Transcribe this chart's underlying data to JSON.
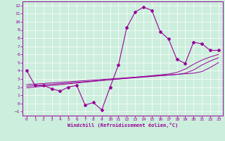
{
  "xlabel": "Windchill (Refroidissement éolien,°C)",
  "x": [
    0,
    1,
    2,
    3,
    4,
    5,
    6,
    7,
    8,
    9,
    10,
    11,
    12,
    13,
    14,
    15,
    16,
    17,
    18,
    19,
    20,
    21,
    22,
    23
  ],
  "y_main": [
    4,
    2.2,
    2.2,
    1.8,
    1.5,
    2.0,
    2.2,
    -0.2,
    0.1,
    -0.8,
    2.0,
    4.7,
    9.3,
    11.2,
    11.8,
    11.4,
    8.8,
    7.9,
    5.4,
    4.9,
    7.5,
    7.3,
    6.5,
    6.5
  ],
  "y_linear1": [
    2.3,
    2.37,
    2.44,
    2.51,
    2.58,
    2.65,
    2.72,
    2.79,
    2.86,
    2.93,
    3.0,
    3.07,
    3.14,
    3.21,
    3.28,
    3.35,
    3.42,
    3.49,
    3.56,
    3.63,
    3.7,
    3.9,
    4.4,
    5.0
  ],
  "y_linear2": [
    2.1,
    2.18,
    2.26,
    2.34,
    2.42,
    2.5,
    2.58,
    2.66,
    2.74,
    2.82,
    2.9,
    2.98,
    3.06,
    3.14,
    3.22,
    3.3,
    3.38,
    3.46,
    3.54,
    3.7,
    4.1,
    4.7,
    5.2,
    5.6
  ],
  "y_linear3": [
    1.9,
    2.0,
    2.1,
    2.2,
    2.3,
    2.4,
    2.5,
    2.6,
    2.7,
    2.8,
    2.9,
    3.0,
    3.1,
    3.2,
    3.3,
    3.4,
    3.5,
    3.6,
    3.8,
    4.2,
    4.8,
    5.3,
    5.7,
    6.0
  ],
  "color": "#990099",
  "bg_color": "#cceedd",
  "ylim": [
    -1.5,
    12.5
  ],
  "xlim": [
    -0.5,
    23.5
  ],
  "yticks": [
    -1,
    0,
    1,
    2,
    3,
    4,
    5,
    6,
    7,
    8,
    9,
    10,
    11,
    12
  ],
  "xticks": [
    0,
    1,
    2,
    3,
    4,
    5,
    6,
    7,
    8,
    9,
    10,
    11,
    12,
    13,
    14,
    15,
    16,
    17,
    18,
    19,
    20,
    21,
    22,
    23
  ]
}
